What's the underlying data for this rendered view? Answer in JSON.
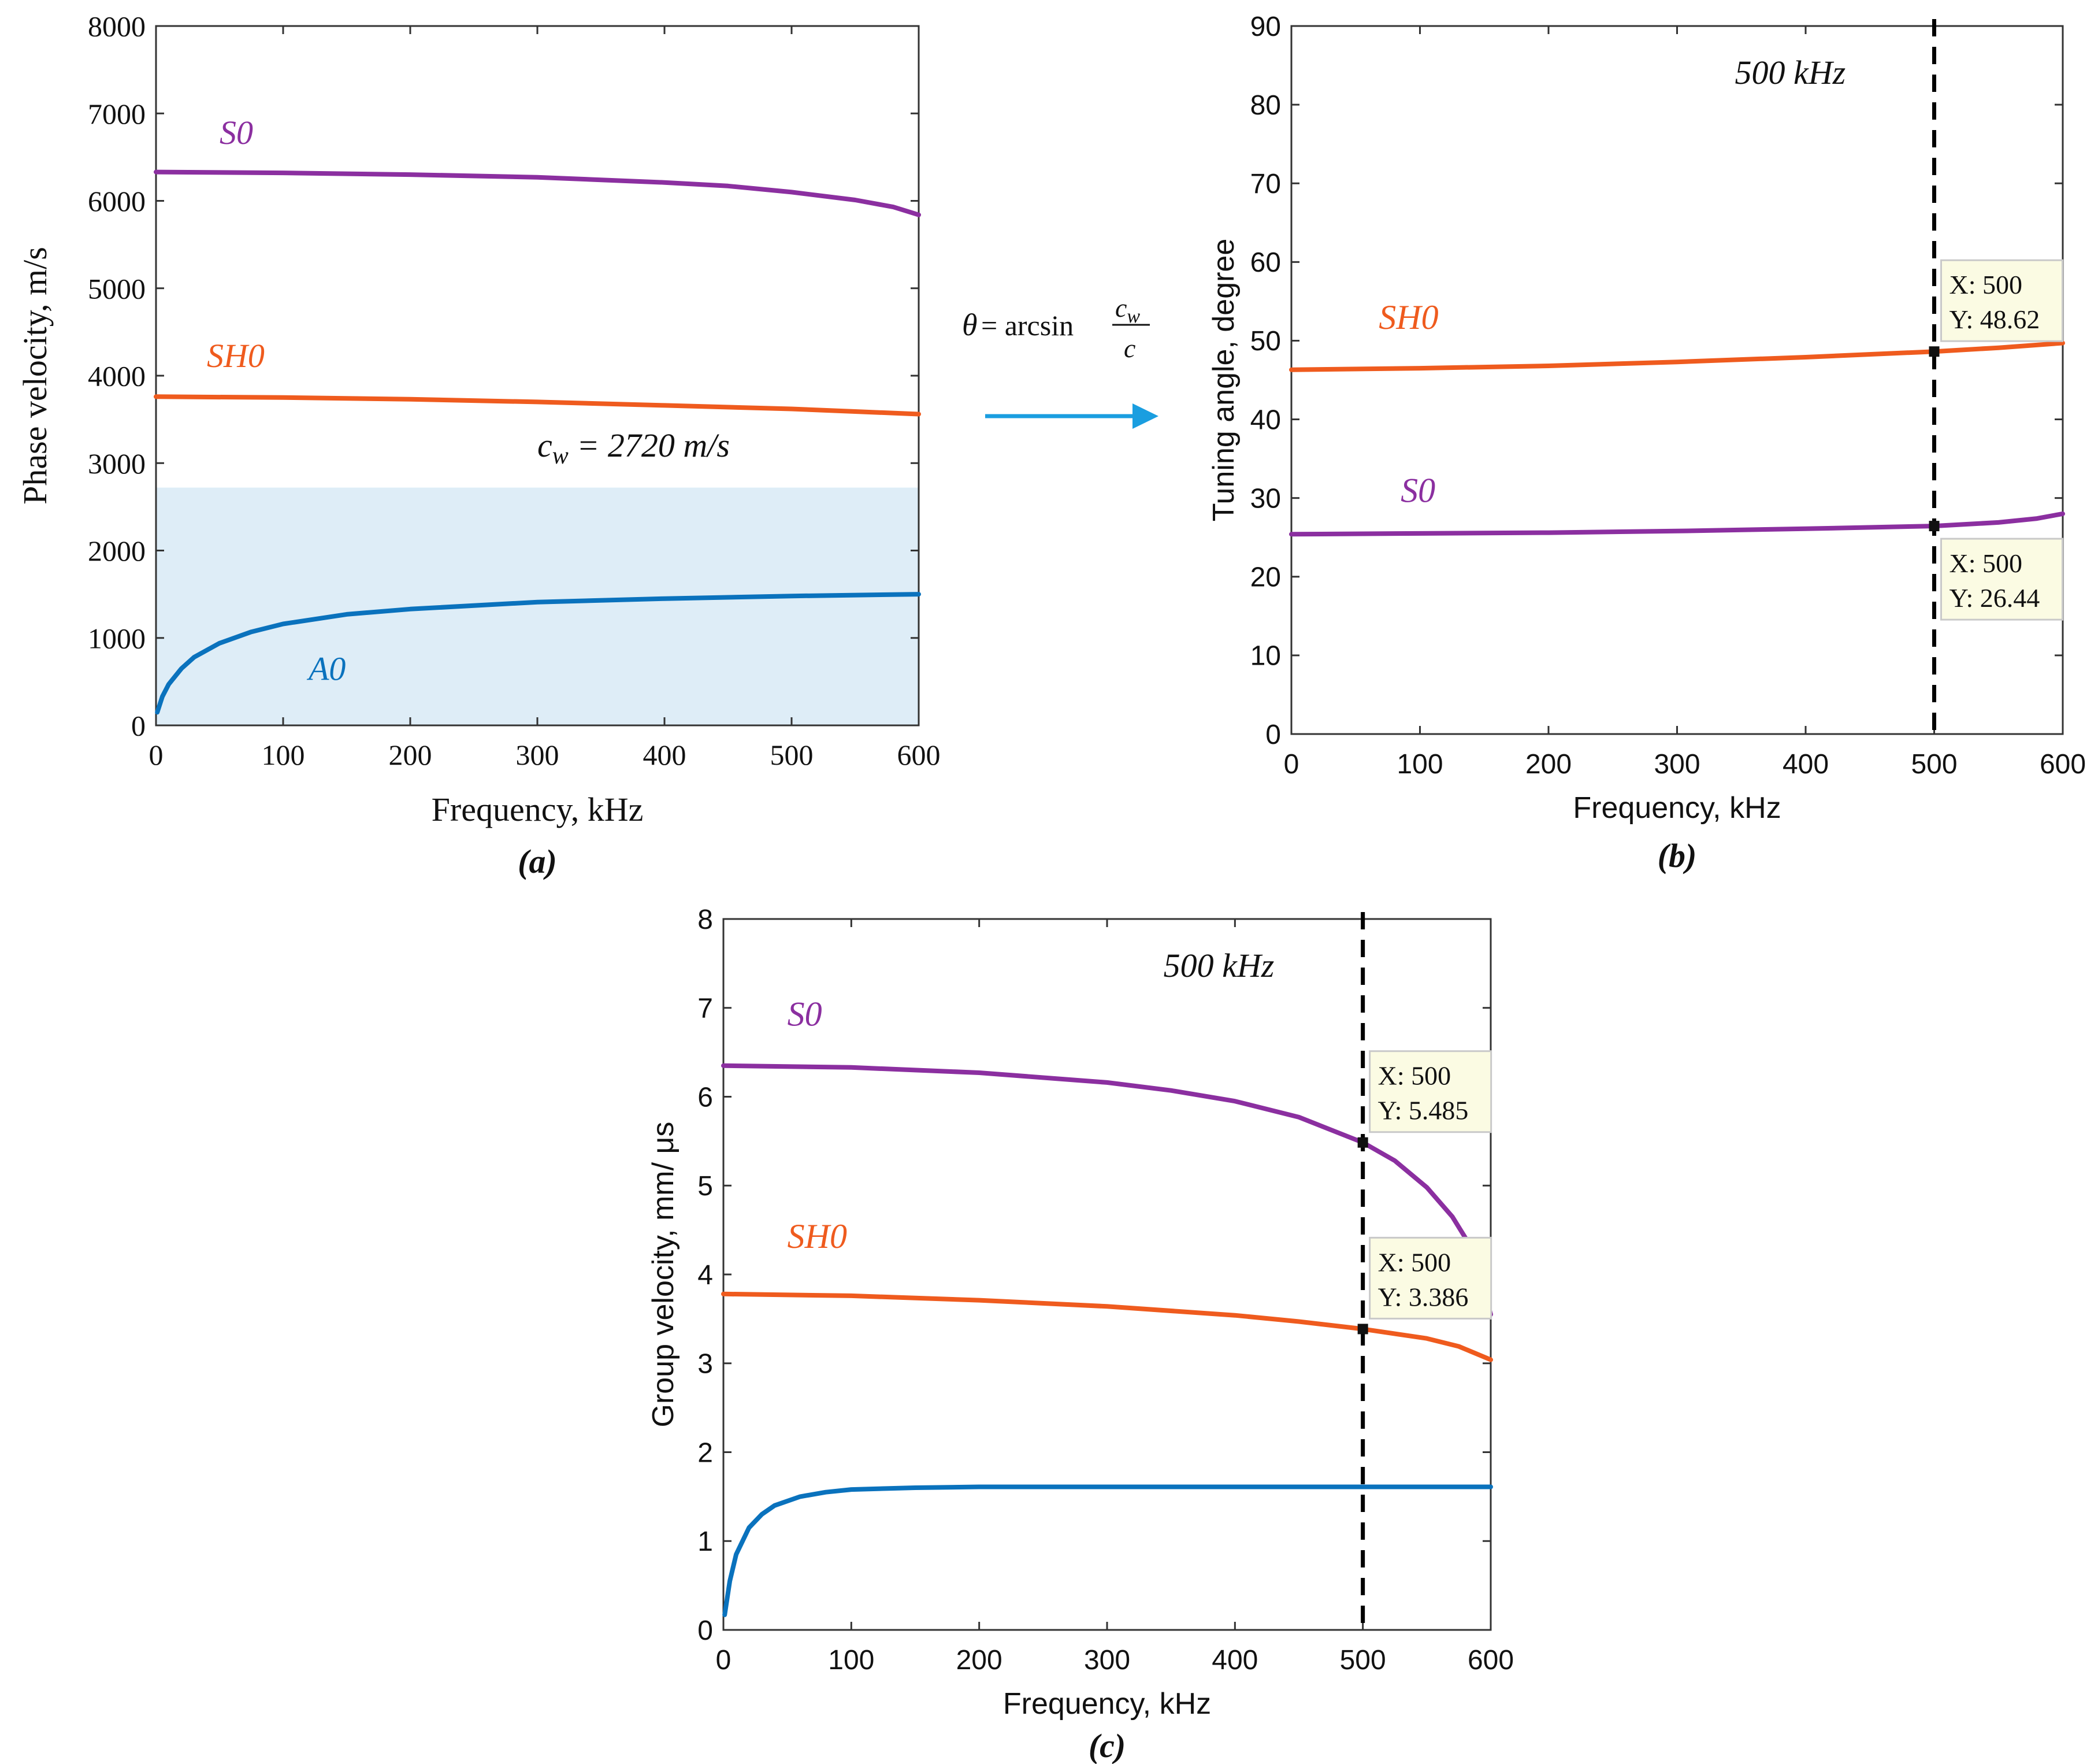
{
  "chart_data": [
    {
      "id": "a",
      "type": "line",
      "panel_label": "(a)",
      "xlabel": "Frequency, kHz",
      "ylabel": "Phase velocity, m/s",
      "xlim": [
        0,
        600
      ],
      "ylim": [
        0,
        8000
      ],
      "xticks": [
        0,
        100,
        200,
        300,
        400,
        500,
        600
      ],
      "yticks": [
        0,
        1000,
        2000,
        3000,
        4000,
        5000,
        6000,
        7000,
        8000
      ],
      "shaded_region": {
        "y_max": 2720,
        "color": "#deedf7"
      },
      "annotation": "c",
      "annotation_sub": "w",
      "annotation_rest": " = 2720 m/s",
      "series": [
        {
          "name": "S0",
          "color": "#8b2fa0",
          "label_at": [
            50,
            6650
          ],
          "x": [
            0,
            100,
            200,
            300,
            400,
            450,
            500,
            550,
            580,
            600
          ],
          "y": [
            6330,
            6320,
            6300,
            6270,
            6210,
            6170,
            6100,
            6010,
            5930,
            5840
          ]
        },
        {
          "name": "SH0",
          "color": "#ef5b1e",
          "label_at": [
            40,
            4100
          ],
          "x": [
            0,
            100,
            200,
            300,
            400,
            500,
            550,
            600
          ],
          "y": [
            3760,
            3750,
            3730,
            3700,
            3660,
            3620,
            3590,
            3560
          ]
        },
        {
          "name": "A0",
          "color": "#0a72bd",
          "label_at": [
            120,
            520
          ],
          "x": [
            1,
            5,
            10,
            20,
            30,
            50,
            75,
            100,
            150,
            200,
            300,
            400,
            500,
            600
          ],
          "y": [
            150,
            330,
            470,
            650,
            780,
            940,
            1070,
            1160,
            1270,
            1330,
            1410,
            1450,
            1480,
            1500
          ]
        }
      ]
    },
    {
      "id": "b",
      "type": "line",
      "panel_label": "(b)",
      "xlabel": "Frequency, kHz",
      "ylabel": "Tuning angle, degree",
      "xlim": [
        0,
        600
      ],
      "ylim": [
        0,
        90
      ],
      "xticks": [
        0,
        100,
        200,
        300,
        400,
        500,
        600
      ],
      "yticks": [
        0,
        10,
        20,
        30,
        40,
        50,
        60,
        70,
        80,
        90
      ],
      "vline": {
        "x": 500,
        "label": "500 kHz"
      },
      "series": [
        {
          "name": "SH0",
          "color": "#ef5b1e",
          "label_at": [
            68,
            51.5
          ],
          "x": [
            0,
            100,
            200,
            300,
            400,
            500,
            550,
            600
          ],
          "y": [
            46.3,
            46.5,
            46.8,
            47.3,
            47.9,
            48.62,
            49.1,
            49.7
          ]
        },
        {
          "name": "S0",
          "color": "#8b2fa0",
          "label_at": [
            85,
            29.5
          ],
          "x": [
            0,
            100,
            200,
            300,
            400,
            500,
            550,
            580,
            600
          ],
          "y": [
            25.4,
            25.5,
            25.6,
            25.8,
            26.1,
            26.44,
            26.9,
            27.4,
            28.0
          ]
        }
      ],
      "datatips": [
        {
          "x_text": "X: 500",
          "y_text": "Y: 48.62",
          "x": 500,
          "y": 48.62,
          "placement": "above-right"
        },
        {
          "x_text": "X: 500",
          "y_text": "Y: 26.44",
          "x": 500,
          "y": 26.44,
          "placement": "below-right"
        }
      ]
    },
    {
      "id": "c",
      "type": "line",
      "panel_label": "(c)",
      "xlabel": "Frequency, kHz",
      "ylabel": "Group velocity, mm/ μs",
      "xlim": [
        0,
        600
      ],
      "ylim": [
        0,
        8
      ],
      "xticks": [
        0,
        100,
        200,
        300,
        400,
        500,
        600
      ],
      "yticks": [
        0,
        1,
        2,
        3,
        4,
        5,
        6,
        7,
        8
      ],
      "vline": {
        "x": 500,
        "label": "500 kHz"
      },
      "series": [
        {
          "name": "S0",
          "color": "#8b2fa0",
          "label_at": [
            50,
            6.8
          ],
          "x": [
            0,
            100,
            200,
            300,
            350,
            400,
            450,
            500,
            525,
            550,
            570,
            585,
            600
          ],
          "y": [
            6.35,
            6.33,
            6.27,
            6.16,
            6.07,
            5.95,
            5.77,
            5.485,
            5.28,
            4.98,
            4.65,
            4.3,
            3.55
          ]
        },
        {
          "name": "SH0",
          "color": "#ef5b1e",
          "label_at": [
            50,
            4.3
          ],
          "x": [
            0,
            100,
            200,
            300,
            400,
            450,
            500,
            550,
            575,
            600
          ],
          "y": [
            3.78,
            3.76,
            3.71,
            3.64,
            3.54,
            3.47,
            3.386,
            3.28,
            3.19,
            3.04
          ]
        },
        {
          "name": "",
          "color": "#0a72bd",
          "x": [
            1,
            5,
            10,
            20,
            30,
            40,
            60,
            80,
            100,
            150,
            200,
            300,
            400,
            500,
            600
          ],
          "y": [
            0.17,
            0.55,
            0.85,
            1.15,
            1.3,
            1.4,
            1.5,
            1.55,
            1.58,
            1.6,
            1.61,
            1.61,
            1.61,
            1.61,
            1.61
          ]
        }
      ],
      "datatips": [
        {
          "x_text": "X: 500",
          "y_text": "Y: 5.485",
          "x": 500,
          "y": 5.485,
          "placement": "above-right"
        },
        {
          "x_text": "X: 500",
          "y_text": "Y: 3.386",
          "x": 500,
          "y": 3.386,
          "placement": "above-right"
        }
      ]
    }
  ],
  "transform": {
    "theta": "θ",
    "equals_arcsin": " = arcsin",
    "numerator": "c",
    "numerator_sub": "w",
    "denominator": "c",
    "arrow_color": "#1a9ee0"
  }
}
